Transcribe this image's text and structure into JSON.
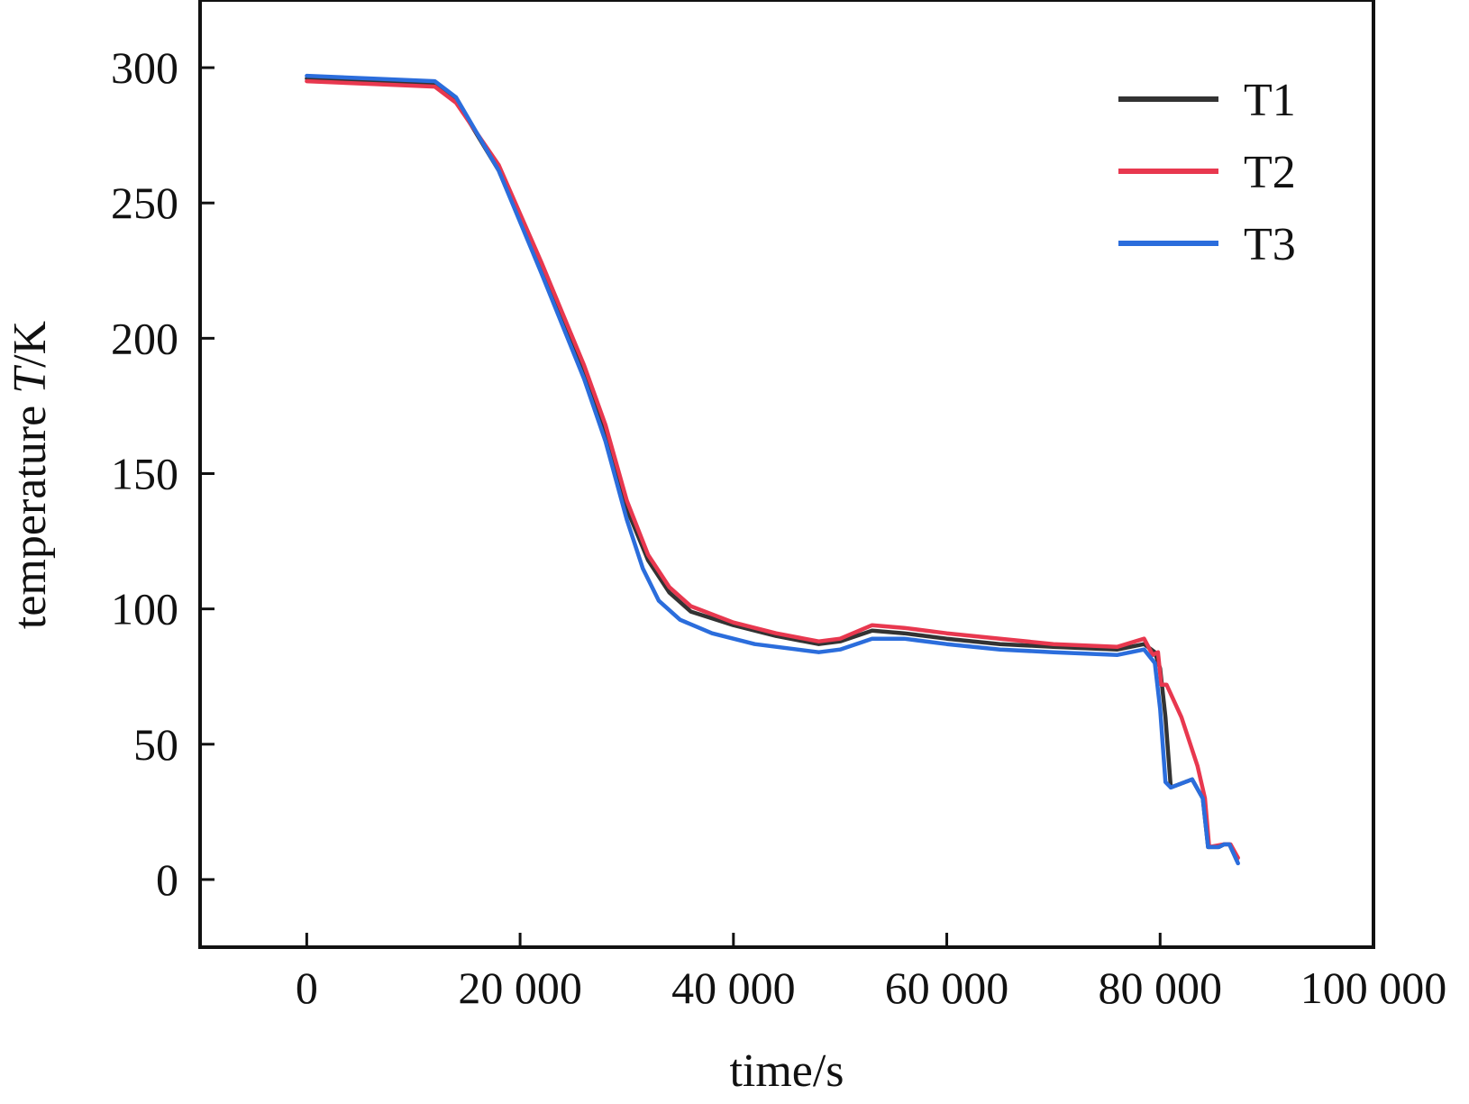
{
  "chart_data": {
    "type": "line",
    "title": "",
    "xlabel": "time/s",
    "ylabel_prefix": "temperature ",
    "ylabel_italic": "T",
    "ylabel_suffix": "/K",
    "xlim": [
      -10000,
      100000
    ],
    "ylim": [
      -25,
      325
    ],
    "xticks": [
      0,
      20000,
      40000,
      60000,
      80000,
      100000
    ],
    "xtick_labels": [
      "0",
      "20 000",
      "40 000",
      "60 000",
      "80 000",
      "100 000"
    ],
    "yticks": [
      0,
      50,
      100,
      150,
      200,
      250,
      300
    ],
    "ytick_labels": [
      "0",
      "50",
      "100",
      "150",
      "200",
      "250",
      "300"
    ],
    "grid": false,
    "legend_position": "top-right",
    "series": [
      {
        "name": "T1",
        "color": "#333333",
        "points": [
          [
            0,
            296
          ],
          [
            6000,
            295
          ],
          [
            12000,
            294
          ],
          [
            14000,
            288
          ],
          [
            18000,
            262
          ],
          [
            22000,
            225
          ],
          [
            26000,
            187
          ],
          [
            28000,
            165
          ],
          [
            30000,
            137
          ],
          [
            32000,
            118
          ],
          [
            34000,
            106
          ],
          [
            36000,
            99
          ],
          [
            40000,
            94
          ],
          [
            44000,
            90
          ],
          [
            48000,
            87
          ],
          [
            50000,
            88
          ],
          [
            53000,
            92
          ],
          [
            56000,
            91
          ],
          [
            60000,
            89
          ],
          [
            65000,
            87
          ],
          [
            70000,
            86
          ],
          [
            76000,
            85
          ],
          [
            78500,
            87
          ],
          [
            79500,
            84
          ],
          [
            80000,
            78
          ],
          [
            80500,
            60
          ],
          [
            81000,
            34
          ],
          [
            83000,
            37
          ],
          [
            84000,
            30
          ],
          [
            84500,
            12
          ],
          [
            85500,
            12
          ],
          [
            86000,
            13
          ],
          [
            86500,
            13
          ],
          [
            87200,
            7
          ]
        ]
      },
      {
        "name": "T2",
        "color": "#e8384f",
        "points": [
          [
            0,
            295
          ],
          [
            6000,
            294
          ],
          [
            12000,
            293
          ],
          [
            14000,
            287
          ],
          [
            18000,
            264
          ],
          [
            22000,
            228
          ],
          [
            26000,
            190
          ],
          [
            28000,
            168
          ],
          [
            30000,
            140
          ],
          [
            32000,
            120
          ],
          [
            34000,
            108
          ],
          [
            36000,
            101
          ],
          [
            40000,
            95
          ],
          [
            44000,
            91
          ],
          [
            48000,
            88
          ],
          [
            50000,
            89
          ],
          [
            53000,
            94
          ],
          [
            56000,
            93
          ],
          [
            60000,
            91
          ],
          [
            65000,
            89
          ],
          [
            70000,
            87
          ],
          [
            76000,
            86
          ],
          [
            78500,
            89
          ],
          [
            79300,
            83
          ],
          [
            79800,
            84
          ],
          [
            80100,
            72
          ],
          [
            80600,
            72
          ],
          [
            82000,
            60
          ],
          [
            83500,
            42
          ],
          [
            84200,
            30
          ],
          [
            84600,
            12
          ],
          [
            86000,
            13
          ],
          [
            86600,
            13
          ],
          [
            87300,
            8
          ]
        ]
      },
      {
        "name": "T3",
        "color": "#2b6ddc",
        "points": [
          [
            0,
            297
          ],
          [
            6000,
            296
          ],
          [
            12000,
            295
          ],
          [
            14000,
            289
          ],
          [
            18000,
            262
          ],
          [
            22000,
            224
          ],
          [
            26000,
            185
          ],
          [
            28000,
            162
          ],
          [
            30000,
            133
          ],
          [
            31500,
            115
          ],
          [
            33000,
            103
          ],
          [
            35000,
            96
          ],
          [
            38000,
            91
          ],
          [
            42000,
            87
          ],
          [
            46000,
            85
          ],
          [
            48000,
            84
          ],
          [
            50000,
            85
          ],
          [
            53000,
            89
          ],
          [
            56000,
            89
          ],
          [
            60000,
            87
          ],
          [
            65000,
            85
          ],
          [
            70000,
            84
          ],
          [
            76000,
            83
          ],
          [
            78500,
            85
          ],
          [
            79500,
            80
          ],
          [
            80000,
            63
          ],
          [
            80500,
            36
          ],
          [
            81000,
            34
          ],
          [
            83000,
            37
          ],
          [
            84000,
            30
          ],
          [
            84500,
            12
          ],
          [
            85500,
            12
          ],
          [
            86000,
            13
          ],
          [
            86500,
            13
          ],
          [
            87300,
            6
          ]
        ]
      }
    ]
  }
}
